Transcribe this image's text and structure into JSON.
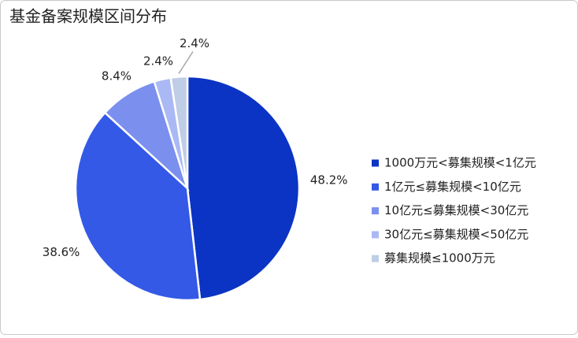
{
  "chart_data": {
    "type": "pie",
    "title": "基金备案规模区间分布",
    "categories": [
      "1000万元<募集规模<1亿元",
      "1亿元≤募集规模<10亿元",
      "10亿元≤募集规模<30亿元",
      "30亿元≤募集规模<50亿元",
      "募集规模≤1000万元"
    ],
    "values": [
      48.2,
      38.6,
      8.4,
      2.4,
      2.4
    ],
    "value_labels": [
      "48.2%",
      "38.6%",
      "8.4%",
      "2.4%",
      "2.4%"
    ],
    "colors": [
      "#0b34c4",
      "#3359e6",
      "#7b8fee",
      "#aab9f4",
      "#bfcde6"
    ],
    "legend": "right"
  }
}
